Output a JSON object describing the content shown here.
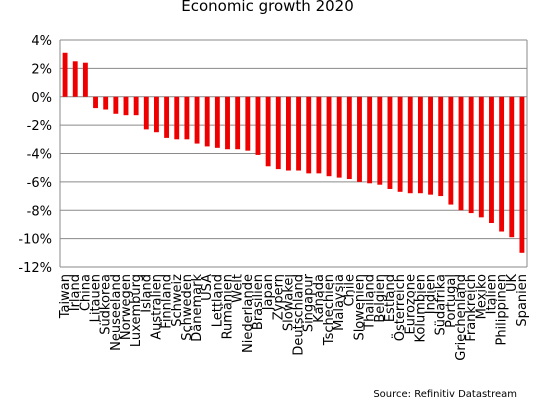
{
  "chart_data": {
    "type": "bar",
    "title": "Economic growth 2020",
    "source": "Source: Refinitiv Datastream",
    "xlabel": "",
    "ylabel": "",
    "ylim": [
      -12,
      4
    ],
    "y_ticks": [
      "4%",
      "2%",
      "0%",
      "-2%",
      "-4%",
      "-6%",
      "-8%",
      "-10%",
      "-12%"
    ],
    "y_tick_values": [
      4,
      2,
      0,
      -2,
      -4,
      -6,
      -8,
      -10,
      -12
    ],
    "grid": true,
    "bar_color": "#ee0000",
    "categories": [
      "Taiwan",
      "Irland",
      "China",
      "Litauen",
      "Südkorea",
      "Neuseeland",
      "Norwegen",
      "Luxemburg",
      "Island",
      "Australien",
      "Finnland",
      "Schweiz",
      "Schweden",
      "Dänemark",
      "USA",
      "Lettland",
      "Rumänien",
      "Welt",
      "Niederlande",
      "Brasilien",
      "Japan",
      "Zypern",
      "Slowakei",
      "Deutschland",
      "Singapur",
      "Kanada",
      "Tschechien",
      "Malaysia",
      "Chile",
      "Slowenien",
      "Thailand",
      "Belgien",
      "Estland",
      "Österreich",
      "Eurozone",
      "Kolumbien",
      "Indien",
      "Südafrika",
      "Portugal",
      "Griechenland",
      "Frankreich",
      "Mexiko",
      "Italien",
      "Philippinen",
      "UK",
      "Spanien"
    ],
    "values": [
      3.1,
      2.5,
      2.4,
      -0.8,
      -0.9,
      -1.2,
      -1.3,
      -1.3,
      -2.3,
      -2.5,
      -2.9,
      -3.0,
      -3.0,
      -3.3,
      -3.5,
      -3.6,
      -3.7,
      -3.7,
      -3.8,
      -4.1,
      -4.9,
      -5.1,
      -5.2,
      -5.2,
      -5.4,
      -5.4,
      -5.6,
      -5.7,
      -5.8,
      -6.0,
      -6.1,
      -6.2,
      -6.5,
      -6.7,
      -6.8,
      -6.8,
      -6.9,
      -7.0,
      -7.6,
      -8.0,
      -8.2,
      -8.5,
      -8.9,
      -9.5,
      -9.9,
      -11.0
    ]
  }
}
